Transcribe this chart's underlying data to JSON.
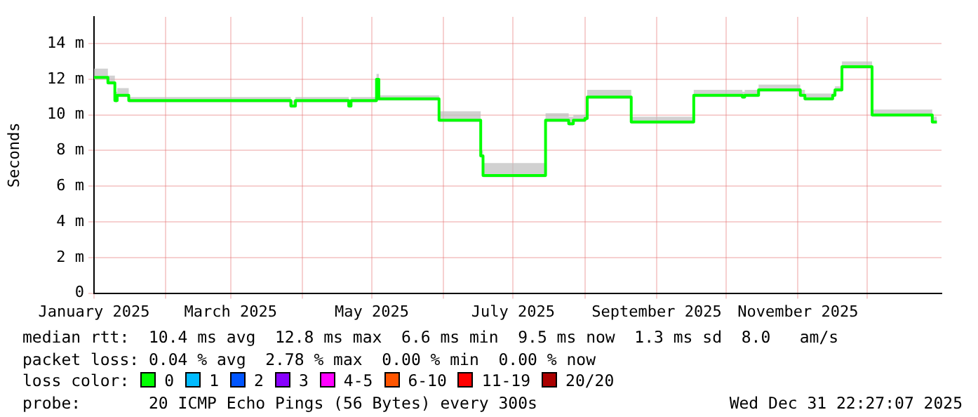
{
  "chart_data": {
    "type": "step",
    "ylabel": "Seconds",
    "x": [
      "2025-01-01",
      "2025-01-07",
      "2025-01-10",
      "2025-01-11",
      "2025-01-16",
      "2025-03-27",
      "2025-03-29",
      "2025-04-21",
      "2025-04-22",
      "2025-05-03",
      "2025-05-04",
      "2025-05-30",
      "2025-06-17",
      "2025-06-18",
      "2025-07-15",
      "2025-07-25",
      "2025-07-27",
      "2025-08-01",
      "2025-08-02",
      "2025-08-21",
      "2025-09-17",
      "2025-10-08",
      "2025-10-09",
      "2025-10-15",
      "2025-11-02",
      "2025-11-04",
      "2025-11-16",
      "2025-11-17",
      "2025-11-20",
      "2025-12-03",
      "2025-12-29",
      "2025-12-31"
    ],
    "series": [
      {
        "color": "#00ff00",
        "values": [
          12.1,
          11.8,
          10.8,
          11.1,
          10.8,
          10.5,
          10.8,
          10.5,
          10.8,
          12.0,
          10.9,
          9.7,
          7.7,
          6.6,
          9.7,
          9.5,
          9.7,
          9.8,
          11.0,
          9.6,
          11.1,
          11.0,
          11.1,
          11.4,
          11.1,
          10.9,
          11.1,
          11.4,
          12.7,
          10.0,
          9.6,
          9.6
        ],
        "lower": [
          12.0,
          11.7,
          10.7,
          11.0,
          10.7,
          10.4,
          10.7,
          10.4,
          10.7,
          11.9,
          10.8,
          9.6,
          7.6,
          6.5,
          9.6,
          9.4,
          9.6,
          9.7,
          10.9,
          9.5,
          11.0,
          10.9,
          11.0,
          11.3,
          11.0,
          10.8,
          11.0,
          11.3,
          12.6,
          9.9,
          9.5,
          9.5
        ],
        "upper": [
          12.6,
          12.2,
          11.3,
          11.5,
          11.0,
          10.8,
          11.0,
          10.8,
          11.0,
          12.3,
          11.1,
          10.2,
          8.0,
          7.3,
          10.1,
          9.9,
          10.0,
          10.0,
          11.4,
          9.9,
          11.4,
          11.3,
          11.4,
          11.7,
          11.4,
          11.2,
          11.3,
          11.6,
          13.0,
          10.3,
          9.9,
          9.8
        ]
      }
    ],
    "xlim": [
      "2025-01-01",
      "2026-01-02"
    ],
    "xticks": [
      {
        "value": "2025-01-01",
        "label": "January 2025"
      },
      {
        "value": "2025-02-01",
        "label": null
      },
      {
        "value": "2025-03-01",
        "label": "March 2025"
      },
      {
        "value": "2025-04-01",
        "label": null
      },
      {
        "value": "2025-05-01",
        "label": "May 2025"
      },
      {
        "value": "2025-06-01",
        "label": null
      },
      {
        "value": "2025-07-01",
        "label": "July 2025"
      },
      {
        "value": "2025-08-01",
        "label": null
      },
      {
        "value": "2025-09-01",
        "label": "September 2025"
      },
      {
        "value": "2025-10-01",
        "label": null
      },
      {
        "value": "2025-11-01",
        "label": "November 2025"
      },
      {
        "value": "2025-12-01",
        "label": null
      }
    ],
    "ylim": [
      0,
      15.5
    ],
    "yticks": [
      0,
      {
        "value": 2,
        "label": "2 m"
      },
      {
        "value": 4,
        "label": "4 m"
      },
      {
        "value": 6,
        "label": "6 m"
      },
      {
        "value": 8,
        "label": "8 m"
      },
      {
        "value": 10,
        "label": "10 m"
      },
      {
        "value": 12,
        "label": "12 m"
      },
      {
        "value": 14,
        "label": "14 m"
      }
    ],
    "grid": true,
    "annotations": [
      "median rtt:  10.4 ms avg  12.8 ms max  6.6 ms min  9.5 ms now  1.3 ms sd  8.0   am/s",
      "packet loss: 0.04 % avg  2.78 % max  0.00 % min  0.00 % now",
      "loss color:",
      "0",
      "1",
      "2",
      "3",
      "4-5",
      "6-10",
      "11-19",
      "20/20",
      "probe:       20 ICMP Echo Pings (56 Bytes) every 300s",
      "Wed Dec 31 22:27:07 2025"
    ]
  }
}
